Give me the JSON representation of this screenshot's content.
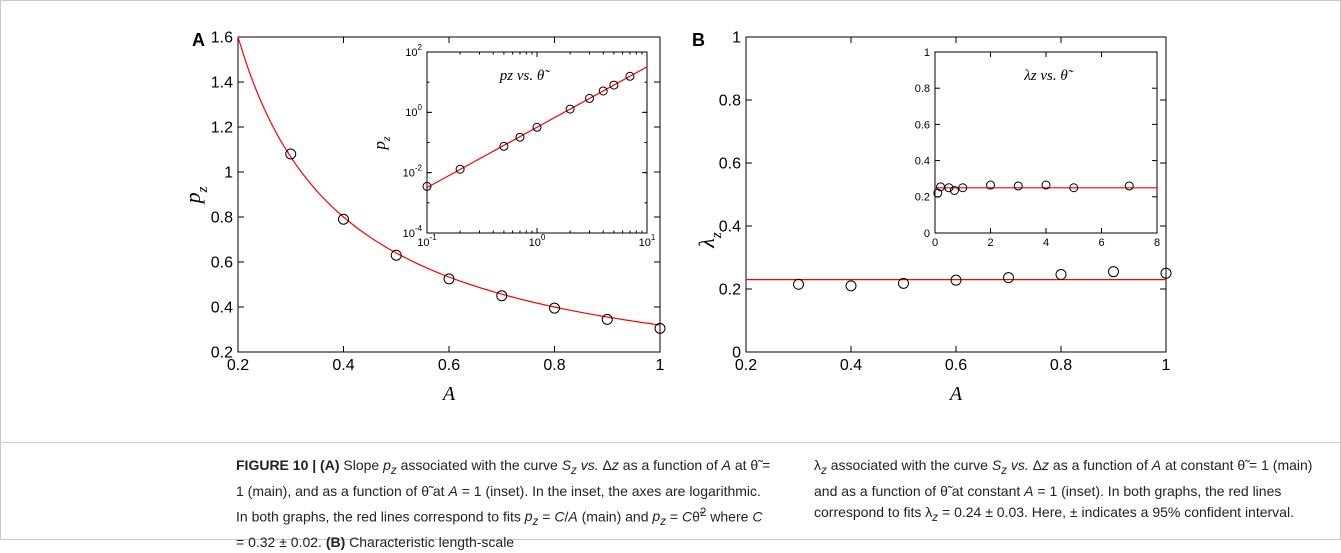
{
  "panel_a_label": "A",
  "panel_b_label": "B",
  "inset_a_title": "p_z vs. θ̃",
  "inset_b_title": "λ_z vs. θ̃",
  "chart_data": [
    {
      "type": "scatter",
      "panel": "A",
      "xlabel": "A",
      "ylabel": "p_z",
      "xlim": [
        0.2,
        1
      ],
      "ylim": [
        0.2,
        1.6
      ],
      "xticks": [
        0.2,
        0.4,
        0.6,
        0.8,
        1
      ],
      "yticks": [
        0.2,
        0.4,
        0.6,
        0.8,
        1,
        1.2,
        1.4,
        1.6
      ],
      "xtick_labels": [
        "0.2",
        "0.4",
        "0.6",
        "0.8",
        "1"
      ],
      "ytick_labels": [
        "0.2",
        "0.4",
        "0.6",
        "0.8",
        "1",
        "1.2",
        "1.4",
        "1.6"
      ],
      "series": [
        {
          "x": [
            0.3,
            0.4,
            0.5,
            0.6,
            0.7,
            0.8,
            0.9,
            1.0
          ],
          "y": [
            1.08,
            0.79,
            0.63,
            0.525,
            0.45,
            0.395,
            0.345,
            0.305
          ],
          "marker": "circle",
          "color": "#000000"
        }
      ],
      "fit": {
        "form": "C/A",
        "C": 0.32,
        "color": "#ff0000"
      }
    },
    {
      "type": "scatter",
      "panel": "A-inset",
      "title": "p_z vs. θ̃",
      "ylabel": "p_z",
      "xscale": "log",
      "yscale": "log",
      "xlim": [
        0.1,
        10
      ],
      "ylim": [
        0.0001,
        100
      ],
      "xtick_labels": [
        "10",
        "10",
        "10"
      ],
      "xtick_exponents": [
        "-1",
        "0",
        "1"
      ],
      "ytick_labels": [
        "10",
        "10",
        "10",
        "10"
      ],
      "ytick_exponents": [
        "-4",
        "-2",
        "0",
        "2"
      ],
      "series": [
        {
          "x": [
            0.1,
            0.2,
            0.5,
            0.7,
            1,
            2,
            3,
            4,
            5,
            7
          ],
          "y": [
            0.0035,
            0.013,
            0.075,
            0.15,
            0.32,
            1.28,
            2.9,
            5.1,
            8.0,
            15.7
          ],
          "marker": "circle",
          "color": "#000000"
        }
      ],
      "fit": {
        "form": "C*theta^2",
        "C": 0.32,
        "color": "#ff0000"
      }
    },
    {
      "type": "scatter",
      "panel": "B",
      "xlabel": "A",
      "ylabel": "λ_z",
      "xlim": [
        0.2,
        1
      ],
      "ylim": [
        0,
        1
      ],
      "xtick_labels": [
        "0.2",
        "0.4",
        "0.6",
        "0.8",
        "1"
      ],
      "ytick_labels": [
        "0",
        "0.2",
        "0.4",
        "0.6",
        "0.8",
        "1"
      ],
      "series": [
        {
          "x": [
            0.3,
            0.4,
            0.5,
            0.6,
            0.7,
            0.8,
            0.9,
            1.0
          ],
          "y": [
            0.215,
            0.21,
            0.218,
            0.228,
            0.236,
            0.246,
            0.255,
            0.25
          ],
          "marker": "circle",
          "color": "#000000"
        }
      ],
      "fit": {
        "form": "constant",
        "value": 0.23,
        "color": "#ff0000"
      }
    },
    {
      "type": "scatter",
      "panel": "B-inset",
      "title": "λ_z vs. θ̃",
      "xlim": [
        0,
        8
      ],
      "ylim": [
        0,
        1
      ],
      "xtick_labels": [
        "0",
        "2",
        "4",
        "6",
        "8"
      ],
      "ytick_labels": [
        "0",
        "0.2",
        "0.4",
        "0.6",
        "0.8",
        "1"
      ],
      "series": [
        {
          "x": [
            0.1,
            0.2,
            0.5,
            0.7,
            1,
            2,
            3,
            4,
            5,
            7
          ],
          "y": [
            0.22,
            0.255,
            0.25,
            0.235,
            0.25,
            0.265,
            0.26,
            0.265,
            0.25,
            0.26
          ],
          "marker": "circle",
          "color": "#000000"
        }
      ],
      "fit": {
        "form": "constant",
        "value": 0.25,
        "color": "#ff0000"
      }
    }
  ],
  "caption": {
    "left_html": "<b>FIGURE 10 | (A)</b> Slope <i>p<sub>z</sub></i> associated with the curve <i>S<sub>z</sub> vs.</i> Δ<i>z</i> as a function of <i>A</i> at θ̃ = 1 (main), and as a function of θ̃ at <i>A</i> = 1 (inset). In the inset, the axes are logarithmic. In both graphs, the red lines correspond to fits <i>p<sub>z</sub></i> = <i>C</i>/<i>A</i> (main) and <i>p<sub>z</sub></i> = <i>C</i>θ̃<sup>2</sup> where <i>C</i> = 0.32 ± 0.02. <b>(B)</b> Characteristic length-scale",
    "right_html": "λ<sub><i>z</i></sub> associated with the curve <i>S<sub>z</sub> vs.</i> Δ<i>z</i> as a function of <i>A</i> at constant θ̃ = 1 (main) and as a function of θ̃ at constant <i>A</i> = 1 (inset). In both graphs, the red lines correspond to fits λ<sub><i>z</i></sub> = 0.24 ± 0.03. Here, ± indicates a 95% confident interval."
  }
}
